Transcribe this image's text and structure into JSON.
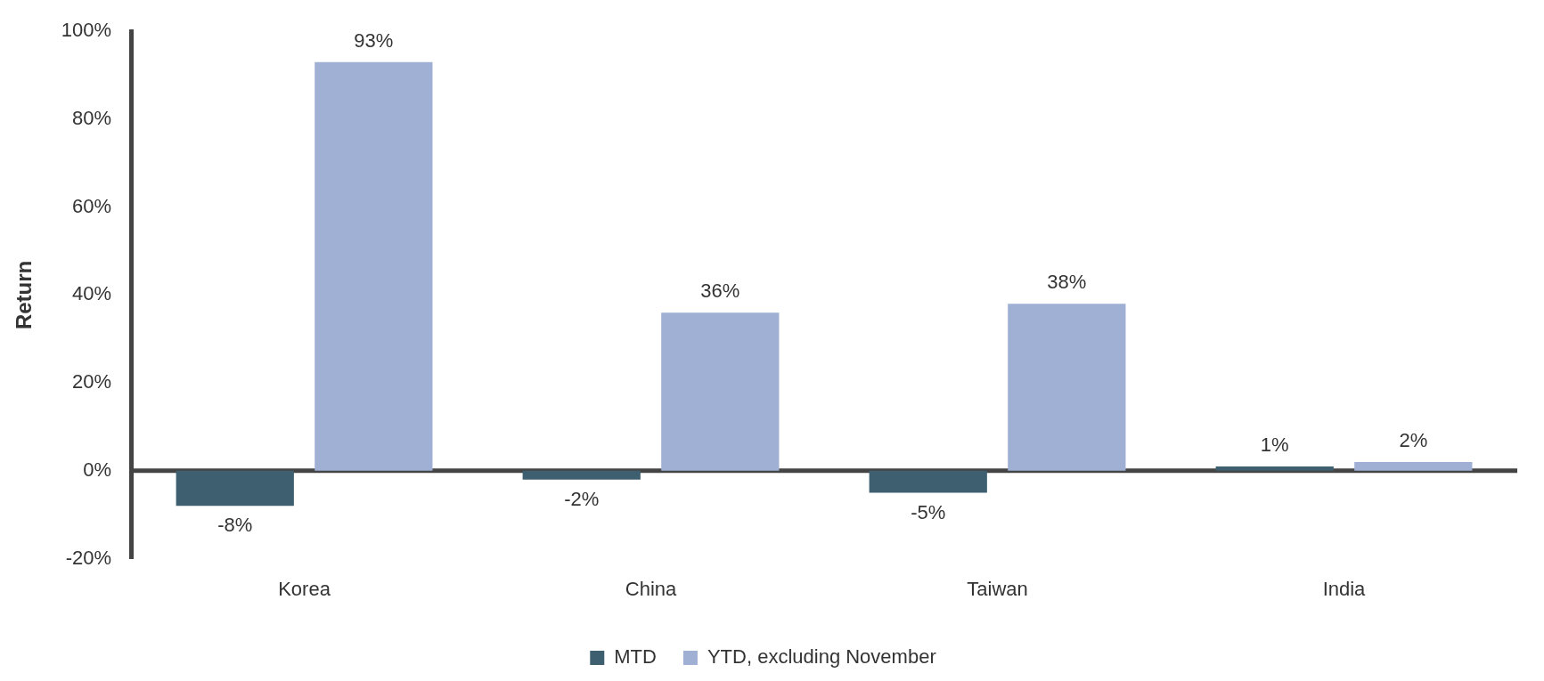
{
  "chart_data": {
    "type": "bar",
    "ylabel": "Return",
    "categories": [
      "Korea",
      "China",
      "Taiwan",
      "India"
    ],
    "series": [
      {
        "name": "MTD",
        "color": "#3d5f70",
        "values": [
          -8,
          -2,
          -5,
          1
        ],
        "value_labels": [
          "-8%",
          "-2%",
          "-5%",
          "1%"
        ]
      },
      {
        "name": "YTD, excluding November",
        "color": "#9fb0d4",
        "values": [
          93,
          36,
          38,
          2
        ],
        "value_labels": [
          "93%",
          "36%",
          "38%",
          "2%"
        ]
      }
    ],
    "ylim": [
      -20,
      100
    ],
    "yticks": [
      {
        "value": -20,
        "label": "-20%"
      },
      {
        "value": 0,
        "label": "0%"
      },
      {
        "value": 20,
        "label": "20%"
      },
      {
        "value": 40,
        "label": "40%"
      },
      {
        "value": 60,
        "label": "60%"
      },
      {
        "value": 80,
        "label": "80%"
      },
      {
        "value": 100,
        "label": "100%"
      }
    ],
    "legend": "bottom"
  }
}
